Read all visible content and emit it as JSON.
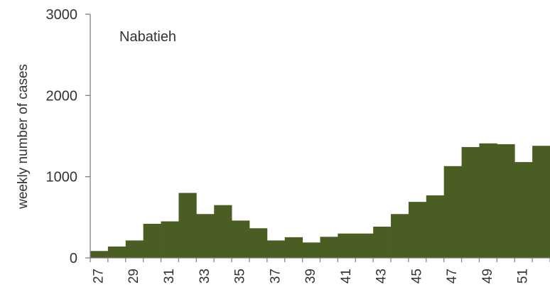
{
  "chart_data": {
    "type": "bar",
    "title": "",
    "annotation": "Nabatieh",
    "xlabel": "",
    "ylabel": "weekly number of cases",
    "ylim": [
      0,
      3000
    ],
    "yticks": [
      0,
      1000,
      2000,
      3000
    ],
    "xtick_labels": [
      "27",
      "29",
      "31",
      "33",
      "35",
      "37",
      "39",
      "41",
      "43",
      "45",
      "47",
      "49",
      "51"
    ],
    "categories": [
      "27",
      "28",
      "29",
      "30",
      "31",
      "32",
      "33",
      "34",
      "35",
      "36",
      "37",
      "38",
      "39",
      "40",
      "41",
      "42",
      "43",
      "44",
      "45",
      "46",
      "47",
      "48",
      "49",
      "50",
      "51",
      "52"
    ],
    "values": [
      85,
      140,
      215,
      420,
      450,
      800,
      540,
      650,
      460,
      365,
      215,
      255,
      190,
      260,
      300,
      300,
      385,
      540,
      690,
      770,
      1130,
      1365,
      1410,
      1400,
      1180,
      1380
    ],
    "bar_color": "#4a5e23",
    "grid": false,
    "legend": "none"
  }
}
